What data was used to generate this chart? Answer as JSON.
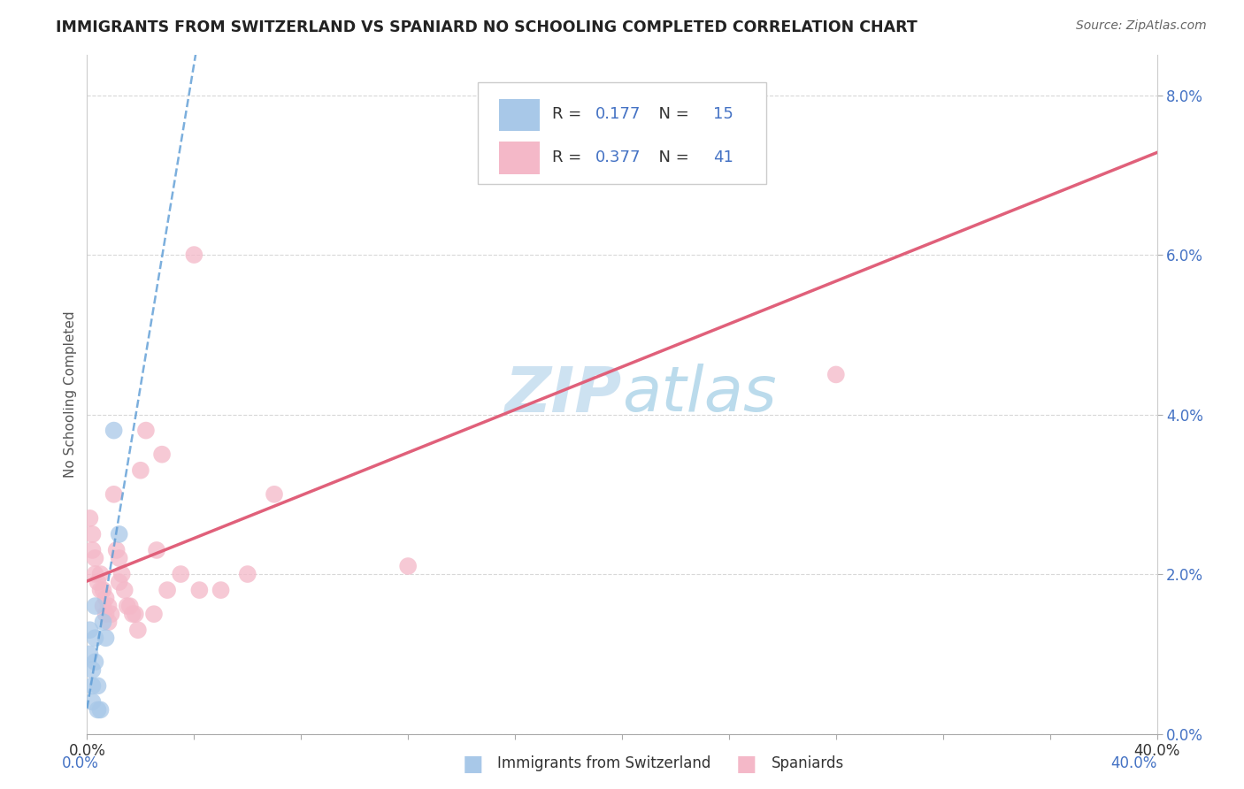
{
  "title": "IMMIGRANTS FROM SWITZERLAND VS SPANIARD NO SCHOOLING COMPLETED CORRELATION CHART",
  "source": "Source: ZipAtlas.com",
  "ylabel": "No Schooling Completed",
  "legend_labels": [
    "Immigrants from Switzerland",
    "Spaniards"
  ],
  "r_swiss": "0.177",
  "n_swiss": "15",
  "r_spaniard": "0.377",
  "n_spaniard": "41",
  "xlim": [
    0.0,
    0.4
  ],
  "ylim": [
    0.0,
    0.085
  ],
  "swiss_color": "#a8c8e8",
  "swiss_line_color": "#5b9bd5",
  "spaniard_color": "#f4b8c8",
  "spaniard_line_color": "#e0607a",
  "text_color_blue": "#4472c4",
  "background_color": "#ffffff",
  "grid_color": "#d8d8d8",
  "watermark_color": "#c8dff0",
  "swiss_points_x": [
    0.001,
    0.001,
    0.002,
    0.002,
    0.002,
    0.003,
    0.003,
    0.003,
    0.004,
    0.004,
    0.005,
    0.006,
    0.007,
    0.01,
    0.012
  ],
  "swiss_points_y": [
    0.013,
    0.01,
    0.008,
    0.006,
    0.004,
    0.016,
    0.012,
    0.009,
    0.006,
    0.003,
    0.003,
    0.014,
    0.012,
    0.038,
    0.025
  ],
  "spaniard_points_x": [
    0.001,
    0.002,
    0.002,
    0.003,
    0.003,
    0.004,
    0.005,
    0.005,
    0.006,
    0.006,
    0.007,
    0.007,
    0.008,
    0.008,
    0.009,
    0.01,
    0.011,
    0.012,
    0.012,
    0.013,
    0.014,
    0.015,
    0.016,
    0.017,
    0.018,
    0.019,
    0.02,
    0.022,
    0.025,
    0.026,
    0.028,
    0.03,
    0.035,
    0.04,
    0.042,
    0.05,
    0.06,
    0.07,
    0.12,
    0.2,
    0.28
  ],
  "spaniard_points_y": [
    0.027,
    0.025,
    0.023,
    0.022,
    0.02,
    0.019,
    0.02,
    0.018,
    0.018,
    0.016,
    0.017,
    0.015,
    0.016,
    0.014,
    0.015,
    0.03,
    0.023,
    0.022,
    0.019,
    0.02,
    0.018,
    0.016,
    0.016,
    0.015,
    0.015,
    0.013,
    0.033,
    0.038,
    0.015,
    0.023,
    0.035,
    0.018,
    0.02,
    0.06,
    0.018,
    0.018,
    0.02,
    0.03,
    0.021,
    0.07,
    0.045
  ]
}
